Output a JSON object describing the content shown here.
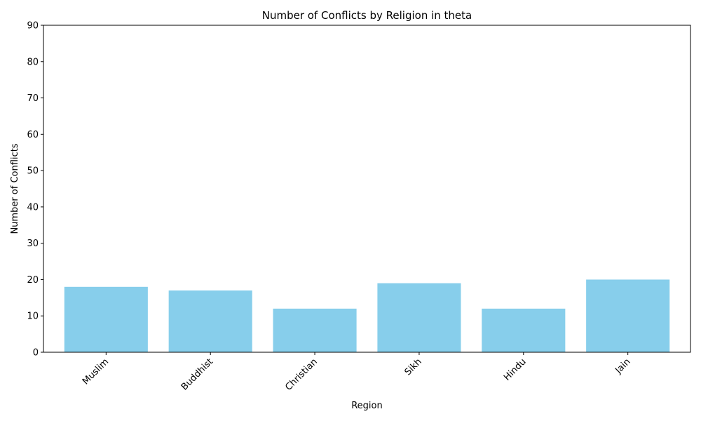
{
  "colors": {
    "bar": "#87ceeb",
    "axis": "#000000",
    "background": "#ffffff"
  },
  "chart_data": {
    "type": "bar",
    "title": "Number of Conflicts by Religion in theta",
    "xlabel": "Region",
    "ylabel": "Number of Conflicts",
    "categories": [
      "Muslim",
      "Buddhist",
      "Christian",
      "Sikh",
      "Hindu",
      "Jain"
    ],
    "values": [
      18,
      17,
      12,
      19,
      12,
      20
    ],
    "ylim": [
      0,
      90
    ],
    "yticks": [
      0,
      10,
      20,
      30,
      40,
      50,
      60,
      70,
      80,
      90
    ],
    "grid": false,
    "legend": "none"
  }
}
